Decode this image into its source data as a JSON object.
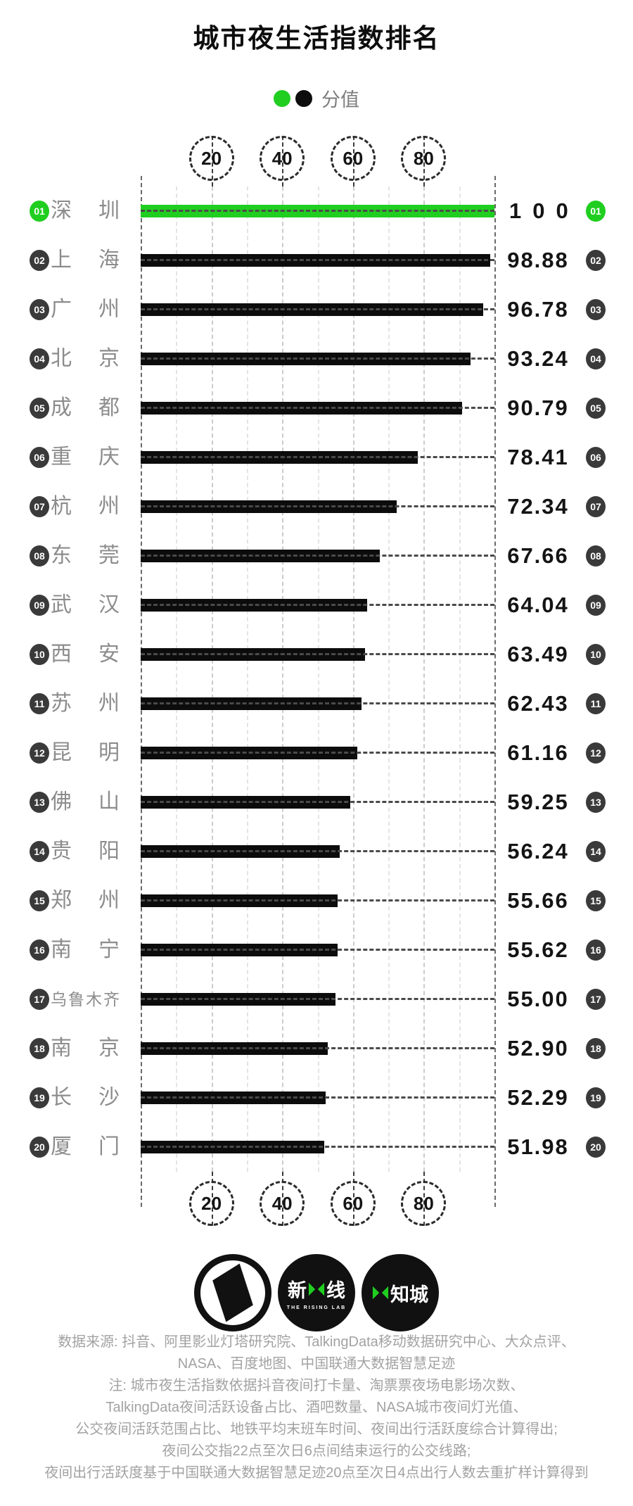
{
  "title": "城市夜生活指数排名",
  "legend": {
    "label": "分值"
  },
  "colors": {
    "green": "#20CE20",
    "bar_black": "#0c0c0c",
    "city_gray": "#8c8c8c",
    "footer_gray": "#a2a2a2"
  },
  "chart_data": {
    "type": "bar",
    "orientation": "horizontal",
    "title": "城市夜生活指数排名",
    "xlabel": "分值",
    "xlim": [
      0,
      100
    ],
    "ticks": [
      20,
      40,
      60,
      80
    ],
    "grid": "dashed vertical, ticks shown in dashed circles on top and bottom",
    "legend_position": "top-center",
    "categories": [
      "深圳",
      "上海",
      "广州",
      "北京",
      "成都",
      "重庆",
      "杭州",
      "东莞",
      "武汉",
      "西安",
      "苏州",
      "昆明",
      "佛山",
      "贵阳",
      "郑州",
      "南宁",
      "乌鲁木齐",
      "南京",
      "长沙",
      "厦门"
    ],
    "values": [
      100,
      98.88,
      96.78,
      93.24,
      90.79,
      78.41,
      72.34,
      67.66,
      64.04,
      63.49,
      62.43,
      61.16,
      59.25,
      56.24,
      55.66,
      55.62,
      55.0,
      52.9,
      52.29,
      51.98
    ],
    "rows": [
      {
        "rank": "01",
        "city": "深圳",
        "value": 100,
        "display": "100",
        "highlight": true
      },
      {
        "rank": "02",
        "city": "上海",
        "value": 98.88,
        "display": "98.88",
        "highlight": false
      },
      {
        "rank": "03",
        "city": "广州",
        "value": 96.78,
        "display": "96.78",
        "highlight": false
      },
      {
        "rank": "04",
        "city": "北京",
        "value": 93.24,
        "display": "93.24",
        "highlight": false
      },
      {
        "rank": "05",
        "city": "成都",
        "value": 90.79,
        "display": "90.79",
        "highlight": false
      },
      {
        "rank": "06",
        "city": "重庆",
        "value": 78.41,
        "display": "78.41",
        "highlight": false
      },
      {
        "rank": "07",
        "city": "杭州",
        "value": 72.34,
        "display": "72.34",
        "highlight": false
      },
      {
        "rank": "08",
        "city": "东莞",
        "value": 67.66,
        "display": "67.66",
        "highlight": false
      },
      {
        "rank": "09",
        "city": "武汉",
        "value": 64.04,
        "display": "64.04",
        "highlight": false
      },
      {
        "rank": "10",
        "city": "西安",
        "value": 63.49,
        "display": "63.49",
        "highlight": false
      },
      {
        "rank": "11",
        "city": "苏州",
        "value": 62.43,
        "display": "62.43",
        "highlight": false
      },
      {
        "rank": "12",
        "city": "昆明",
        "value": 61.16,
        "display": "61.16",
        "highlight": false
      },
      {
        "rank": "13",
        "city": "佛山",
        "value": 59.25,
        "display": "59.25",
        "highlight": false
      },
      {
        "rank": "14",
        "city": "贵阳",
        "value": 56.24,
        "display": "56.24",
        "highlight": false
      },
      {
        "rank": "15",
        "city": "郑州",
        "value": 55.66,
        "display": "55.66",
        "highlight": false
      },
      {
        "rank": "16",
        "city": "南宁",
        "value": 55.62,
        "display": "55.62",
        "highlight": false
      },
      {
        "rank": "17",
        "city": "乌鲁木齐",
        "value": 55.0,
        "display": "55.00",
        "highlight": false
      },
      {
        "rank": "18",
        "city": "南京",
        "value": 52.9,
        "display": "52.90",
        "highlight": false
      },
      {
        "rank": "19",
        "city": "长沙",
        "value": 52.29,
        "display": "52.29",
        "highlight": false
      },
      {
        "rank": "20",
        "city": "厦门",
        "value": 51.98,
        "display": "51.98",
        "highlight": false
      }
    ]
  },
  "logos": {
    "rising_lab_cn_left": "新",
    "rising_lab_cn_right": "线",
    "rising_lab_sub": "THE RISING LAB",
    "zhicheng_cn": "知城"
  },
  "footer": {
    "lines": [
      "数据来源: 抖音、阿里影业灯塔研究院、TalkingData移动数据研究中心、大众点评、",
      "NASA、百度地图、中国联通大数据智慧足迹",
      "注: 城市夜生活指数依据抖音夜间打卡量、淘票票夜场电影场次数、",
      "TalkingData夜间活跃设备占比、酒吧数量、NASA城市夜间灯光值、",
      "公交夜间活跃范围占比、地铁平均末班车时间、夜间出行活跃度综合计算得出;",
      "夜间公交指22点至次日6点间结束运行的公交线路;",
      "夜间出行活跃度基于中国联通大数据智慧足迹20点至次日4点出行人数去重扩样计算得到"
    ]
  }
}
